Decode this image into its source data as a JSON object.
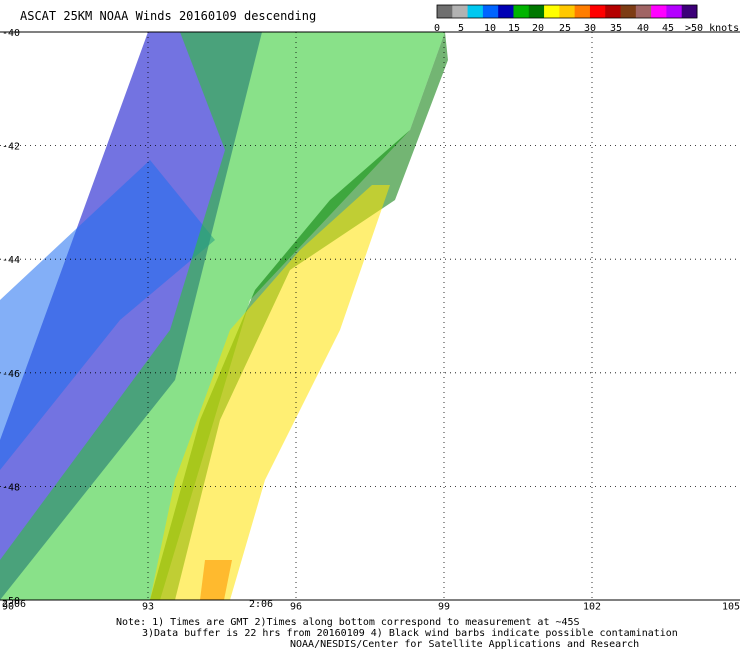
{
  "title": "ASCAT 25KM NOAA Winds 20160109 descending",
  "legend": {
    "colors": [
      "#6f6f6f",
      "#b2b2b2",
      "#00c8f0",
      "#0064ff",
      "#0000b4",
      "#00b400",
      "#007800",
      "#ffff00",
      "#ffc800",
      "#ff7d00",
      "#ff0000",
      "#b40000",
      "#7d3c14",
      "#a06464",
      "#ff00ff",
      "#b400ff",
      "#3c0078"
    ],
    "labels": [
      "0",
      "5",
      "10",
      "15",
      "20",
      "25",
      "30",
      "35",
      "40",
      "45",
      ">50 knots"
    ]
  },
  "axes": {
    "x_ticks": [
      "90",
      "93",
      "96",
      "99",
      "102",
      "105"
    ],
    "y_ticks": [
      "-40",
      "-42",
      "-44",
      "-46",
      "-48",
      "-50"
    ]
  },
  "swath": {
    "colors": {
      "calm_blue": "#0000c8",
      "light_blue": "#1e6ef0",
      "green": "#28c828",
      "dark_green": "#007800",
      "yellow": "#ffe100",
      "orange": "#ff9600"
    },
    "bands": [
      "calm_blue",
      "light_blue",
      "green",
      "dark_green",
      "yellow"
    ]
  },
  "times": [
    "2:06",
    "2:06"
  ],
  "notes": [
    "Note: 1) Times are GMT 2)Times along bottom correspond to measurement at ~45S",
    "3)Data buffer is 22 hrs from 20160109 4) Black wind barbs indicate possible contamination",
    "NOAA/NESDIS/Center for Satellite Applications and Research"
  ]
}
